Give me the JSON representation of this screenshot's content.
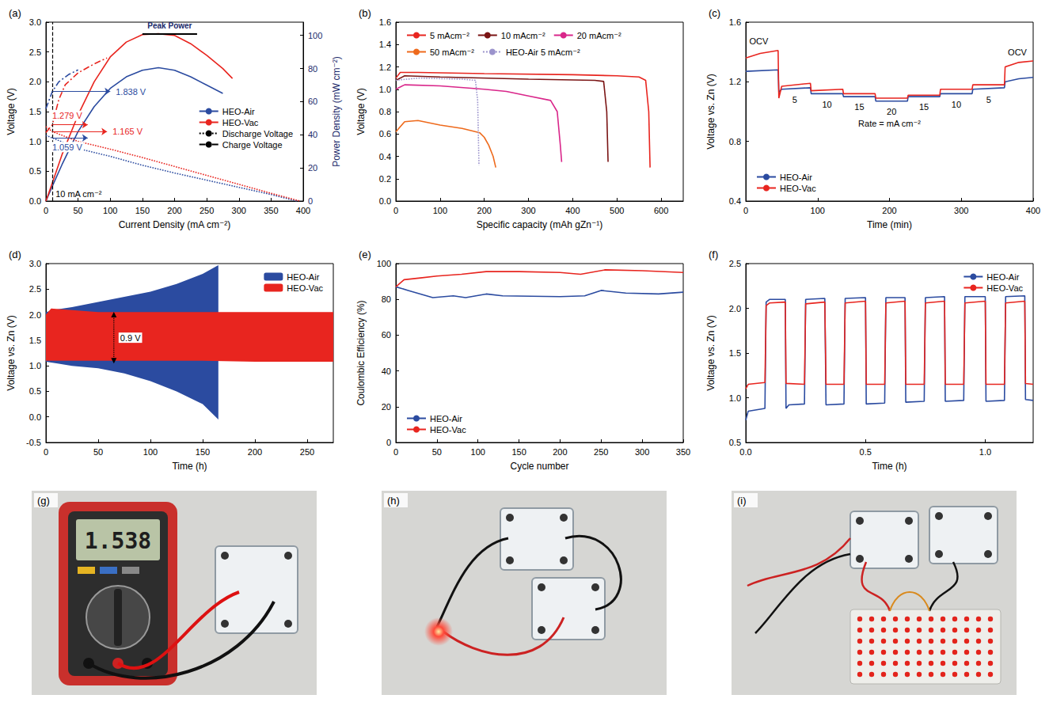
{
  "chart_data": [
    {
      "panel": "(a)",
      "type": "line",
      "x_label": "Current Density (mA cm⁻²)",
      "y_label": "Voltage (V)",
      "y2_label": "Power Density (mW cm⁻²)",
      "xlim": [
        0,
        400
      ],
      "xticks": [
        0,
        50,
        100,
        150,
        200,
        250,
        300,
        350,
        400
      ],
      "ylim": [
        0,
        3
      ],
      "yticks": [
        {
          "value": 0,
          "label": "0.0"
        },
        0.5,
        {
          "value": 1,
          "label": "1.0"
        },
        1.5,
        {
          "value": 2,
          "label": "2.0"
        },
        2.5,
        {
          "value": 3,
          "label": "3.0"
        }
      ],
      "y2lim": [
        0,
        108
      ],
      "y2ticks": [
        0,
        20,
        40,
        60,
        80,
        100
      ],
      "grid": false,
      "legend": "right",
      "series": [
        {
          "name": "HEO-Air",
          "color": "#2b4ba0",
          "line_style": "solid",
          "axis": "y2",
          "x": [
            0,
            10,
            25,
            50,
            75,
            100,
            125,
            150,
            175,
            200,
            225,
            250,
            275
          ],
          "values": [
            0,
            9,
            22,
            42,
            57,
            68,
            75,
            79,
            80.5,
            79,
            75,
            70,
            65
          ]
        },
        {
          "name": "HEO-Vac",
          "color": "#e8251f",
          "line_style": "solid",
          "axis": "y2",
          "x": [
            0,
            10,
            25,
            50,
            75,
            100,
            125,
            150,
            175,
            200,
            225,
            250,
            275,
            290
          ],
          "values": [
            0,
            11,
            28,
            52,
            72,
            87,
            96,
            100.5,
            101,
            100,
            95,
            88,
            80,
            74
          ]
        },
        {
          "name": "HEO-Air",
          "color": "#2b4ba0",
          "line_style": "dotted",
          "x": [
            0,
            10,
            50,
            100,
            150,
            200,
            250,
            300,
            350,
            390
          ],
          "values": [
            1.1,
            1.059,
            0.88,
            0.75,
            0.6,
            0.47,
            0.35,
            0.23,
            0.11,
            0
          ]
        },
        {
          "name": "HEO-Vac",
          "color": "#e8251f",
          "line_style": "dotted",
          "x": [
            0,
            10,
            50,
            100,
            150,
            200,
            250,
            300,
            350,
            395
          ],
          "values": [
            1.25,
            1.165,
            1.0,
            0.87,
            0.73,
            0.58,
            0.43,
            0.28,
            0.13,
            0
          ]
        },
        {
          "name": "HEO-Air",
          "color": "#2b4ba0",
          "line_style": "dashdot",
          "x": [
            0,
            10,
            20,
            35,
            50
          ],
          "values": [
            1.55,
            1.838,
            2.0,
            2.12,
            2.2
          ]
        },
        {
          "name": "HEO-Vac",
          "color": "#e8251f",
          "line_style": "dashdot",
          "x": [
            0,
            10,
            20,
            30,
            50,
            75,
            95
          ],
          "values": [
            1.15,
            1.279,
            1.7,
            1.95,
            2.15,
            2.3,
            2.4
          ]
        }
      ],
      "legend_items": [
        {
          "name": "Discharge Voltage",
          "line_style": "dotted",
          "color": "#000000"
        },
        {
          "name": "Charge Voltage",
          "line_style": "dashdot",
          "color": "#000000"
        }
      ],
      "peak": {
        "text": "Peak Power",
        "x_start": 150,
        "x_end": 235,
        "value": 101
      },
      "arrows": [
        {
          "text": "1.838 V",
          "value": 1.838,
          "x_start": 10,
          "x_end": 100,
          "color": "#2b4ba0"
        },
        {
          "text": "1.279 V",
          "value": 1.279,
          "x_start": 10,
          "x_end": 65,
          "color": "#e8251f"
        },
        {
          "text": "1.165 V",
          "value": 1.165,
          "x_start": 10,
          "x_end": 95,
          "color": "#e8251f"
        },
        {
          "text": "1.059 V",
          "value": 1.059,
          "x_start": 10,
          "x_end": 65,
          "color": "#2b4ba0"
        }
      ],
      "current_marker": {
        "value": 10,
        "text": "10 mA cm⁻²"
      }
    },
    {
      "panel": "(b)",
      "type": "line",
      "x_label": "Specific capacity (mAh gZn⁻¹)",
      "y_label": "Voltage (V)",
      "xlim": [
        0,
        650
      ],
      "xticks": [
        0,
        100,
        200,
        300,
        400,
        500,
        600
      ],
      "ylim": [
        0,
        1.6
      ],
      "yticks": [
        {
          "value": 0,
          "label": "0.0"
        },
        0.2,
        0.4,
        0.6,
        0.8,
        {
          "value": 1,
          "label": "1.0"
        },
        1.2,
        1.4,
        1.6
      ],
      "grid": false,
      "legend": "top-left",
      "series": [
        {
          "name": "5 mAcm⁻²",
          "color": "#e8251f",
          "line_style": "solid",
          "x": [
            0,
            10,
            50,
            200,
            400,
            500,
            550,
            565,
            572,
            575
          ],
          "values": [
            1.1,
            1.15,
            1.15,
            1.14,
            1.13,
            1.12,
            1.11,
            1.08,
            0.8,
            0.3
          ]
        },
        {
          "name": "10 mAcm⁻²",
          "color": "#7a1414",
          "line_style": "solid",
          "x": [
            0,
            20,
            100,
            300,
            450,
            470,
            477,
            480
          ],
          "values": [
            1.08,
            1.12,
            1.11,
            1.09,
            1.08,
            1.07,
            0.8,
            0.35
          ]
        },
        {
          "name": "20 mAcm⁻²",
          "color": "#d9268a",
          "line_style": "solid",
          "x": [
            0,
            20,
            100,
            200,
            250,
            300,
            350,
            365,
            372,
            375
          ],
          "values": [
            1.0,
            1.04,
            1.03,
            1.0,
            0.98,
            0.94,
            0.9,
            0.8,
            0.5,
            0.35
          ]
        },
        {
          "name": "50 mAcm⁻²",
          "color": "#ee6a1c",
          "line_style": "solid",
          "x": [
            0,
            20,
            50,
            100,
            150,
            190,
            200,
            210,
            220,
            226
          ],
          "values": [
            0.62,
            0.71,
            0.72,
            0.68,
            0.65,
            0.61,
            0.57,
            0.5,
            0.4,
            0.3
          ]
        },
        {
          "name": "HEO-Air 5 mAcm⁻²",
          "color": "#9b93cc",
          "line_style": "dotted",
          "x": [
            0,
            50,
            150,
            180,
            185,
            188
          ],
          "values": [
            1.08,
            1.1,
            1.09,
            1.08,
            0.9,
            0.32
          ]
        }
      ]
    },
    {
      "panel": "(c)",
      "type": "line",
      "x_label": "Time (min)",
      "y_label": "Voltage vs. Zn (V)",
      "xlim": [
        0,
        400
      ],
      "xticks": [
        0,
        100,
        200,
        300,
        400
      ],
      "ylim": [
        0.4,
        1.6
      ],
      "yticks": [
        0.4,
        0.8,
        1.2,
        1.6
      ],
      "grid": false,
      "legend": "bottom-left",
      "series": [
        {
          "name": "HEO-Air",
          "color": "#2b4ba0",
          "line_style": "solid",
          "x": [
            0,
            45,
            46,
            50,
            90,
            91,
            135,
            136,
            180,
            181,
            225,
            226,
            270,
            271,
            315,
            316,
            360,
            361,
            380,
            400
          ],
          "values": [
            1.27,
            1.28,
            1.13,
            1.15,
            1.16,
            1.12,
            1.12,
            1.1,
            1.1,
            1.07,
            1.07,
            1.1,
            1.1,
            1.12,
            1.12,
            1.15,
            1.16,
            1.2,
            1.22,
            1.23
          ]
        },
        {
          "name": "HEO-Vac",
          "color": "#e8251f",
          "line_style": "solid",
          "x": [
            0,
            20,
            45,
            46,
            50,
            90,
            91,
            135,
            136,
            180,
            181,
            225,
            226,
            270,
            271,
            315,
            316,
            360,
            361,
            380,
            400
          ],
          "values": [
            1.36,
            1.39,
            1.41,
            1.09,
            1.17,
            1.19,
            1.14,
            1.15,
            1.12,
            1.12,
            1.09,
            1.09,
            1.11,
            1.11,
            1.15,
            1.15,
            1.18,
            1.18,
            1.3,
            1.33,
            1.34
          ]
        }
      ],
      "annotations": [
        {
          "text": "OCV",
          "x": 18,
          "y": 1.47
        },
        {
          "text": "OCV",
          "x": 378,
          "y": 1.4
        },
        {
          "text": "5",
          "x": 68,
          "y": 1.08
        },
        {
          "text": "10",
          "x": 113,
          "y": 1.05
        },
        {
          "text": "15",
          "x": 158,
          "y": 1.03
        },
        {
          "text": "20",
          "x": 203,
          "y": 1.0
        },
        {
          "text": "15",
          "x": 248,
          "y": 1.03
        },
        {
          "text": "10",
          "x": 293,
          "y": 1.05
        },
        {
          "text": "5",
          "x": 338,
          "y": 1.08
        },
        {
          "text": "Rate = mA cm⁻²",
          "x": 200,
          "y": 0.92
        }
      ]
    },
    {
      "panel": "(d)",
      "type": "band",
      "x_label": "Time (h)",
      "y_label": "Voltage vs. Zn (V)",
      "xlim": [
        0,
        275
      ],
      "xticks": [
        0,
        50,
        100,
        150,
        200,
        250
      ],
      "ylim": [
        -0.5,
        3
      ],
      "yticks": [
        -0.5,
        {
          "value": 0,
          "label": "0.0"
        },
        0.5,
        {
          "value": 1,
          "label": "1.0"
        },
        1.5,
        {
          "value": 2,
          "label": "2.0"
        },
        2.5,
        {
          "value": 3,
          "label": "3.0"
        }
      ],
      "grid": false,
      "legend": "top-right",
      "series": [
        {
          "name": "HEO-Air",
          "color": "#2b4ba0",
          "x": [
            0,
            10,
            25,
            50,
            75,
            100,
            125,
            150,
            165
          ],
          "upper": [
            2.05,
            2.1,
            2.15,
            2.25,
            2.35,
            2.45,
            2.6,
            2.8,
            2.97
          ],
          "lower": [
            1.08,
            1.05,
            1.0,
            0.95,
            0.85,
            0.7,
            0.5,
            0.25,
            -0.05
          ]
        },
        {
          "name": "HEO-Vac",
          "color": "#e8251f",
          "x": [
            0,
            5,
            50,
            100,
            150,
            200,
            250,
            275
          ],
          "upper": [
            2.0,
            2.12,
            2.05,
            2.05,
            2.05,
            2.05,
            2.05,
            2.05
          ],
          "lower": [
            1.1,
            1.1,
            1.1,
            1.1,
            1.1,
            1.08,
            1.08,
            1.08
          ]
        }
      ],
      "span_arrow": {
        "text": "0.9 V",
        "x": 65,
        "from": 1.1,
        "to": 2.0
      }
    },
    {
      "panel": "(e)",
      "type": "line",
      "x_label": "Cycle number",
      "y_label": "Coulombic Efficiency (%)",
      "xlim": [
        0,
        350
      ],
      "xticks": [
        0,
        50,
        100,
        150,
        200,
        250,
        300,
        350
      ],
      "ylim": [
        0,
        100
      ],
      "yticks": [
        0,
        20,
        40,
        60,
        80,
        100
      ],
      "grid": false,
      "legend": "bottom-left",
      "series": [
        {
          "name": "HEO-Air",
          "color": "#2b4ba0",
          "line_style": "solid",
          "x": [
            0,
            15,
            30,
            45,
            70,
            85,
            110,
            130,
            200,
            230,
            250,
            280,
            320,
            350
          ],
          "values": [
            87,
            85,
            83,
            81,
            82,
            81,
            83,
            82,
            81.5,
            82,
            85,
            83.5,
            83,
            84
          ]
        },
        {
          "name": "HEO-Vac",
          "color": "#e8251f",
          "line_style": "solid",
          "x": [
            0,
            10,
            30,
            50,
            80,
            110,
            150,
            200,
            225,
            255,
            300,
            350
          ],
          "values": [
            87,
            91,
            92,
            93,
            94,
            95.5,
            95.5,
            95,
            94,
            96.5,
            96,
            95
          ]
        }
      ]
    },
    {
      "panel": "(f)",
      "type": "line",
      "x_label": "Time (h)",
      "y_label": "Voltage vs. Zn (V)",
      "xlim": [
        0,
        1.2
      ],
      "xticks": [
        {
          "value": 0,
          "label": "0.0"
        },
        0.5,
        {
          "value": 1,
          "label": "1.0"
        }
      ],
      "ylim": [
        0.5,
        2.5
      ],
      "yticks": [
        0.5,
        {
          "value": 1,
          "label": "1.0"
        },
        1.5,
        {
          "value": 2,
          "label": "2.0"
        },
        2.5
      ],
      "grid": false,
      "legend": "top-right",
      "series": [
        {
          "name": "HEO-Air",
          "color": "#2b4ba0",
          "line_style": "solid",
          "x": [
            0,
            0.01,
            0.08,
            0.085,
            0.1,
            0.165,
            0.168,
            0.18,
            0.245,
            0.25,
            0.33,
            0.335,
            0.41,
            0.415,
            0.5,
            0.503,
            0.58,
            0.585,
            0.665,
            0.668,
            0.745,
            0.75,
            0.83,
            0.833,
            0.91,
            0.915,
            1.0,
            1.003,
            1.08,
            1.085,
            1.165,
            1.168,
            1.2
          ],
          "values": [
            0.75,
            0.85,
            0.88,
            2.07,
            2.1,
            2.1,
            0.88,
            0.92,
            0.93,
            2.1,
            2.11,
            0.92,
            0.93,
            2.11,
            2.12,
            0.93,
            0.94,
            2.12,
            2.12,
            0.95,
            0.96,
            2.12,
            2.13,
            0.96,
            0.97,
            2.13,
            2.13,
            0.96,
            0.97,
            2.13,
            2.14,
            0.98,
            0.97
          ]
        },
        {
          "name": "HEO-Vac",
          "color": "#e8251f",
          "line_style": "solid",
          "x": [
            0,
            0.01,
            0.08,
            0.085,
            0.1,
            0.165,
            0.168,
            0.245,
            0.25,
            0.33,
            0.335,
            0.41,
            0.415,
            0.5,
            0.503,
            0.58,
            0.585,
            0.665,
            0.668,
            0.745,
            0.75,
            0.83,
            0.833,
            0.91,
            0.915,
            1.0,
            1.003,
            1.08,
            1.085,
            1.165,
            1.168,
            1.2
          ],
          "values": [
            1.1,
            1.15,
            1.17,
            2.03,
            2.06,
            2.07,
            1.16,
            1.15,
            2.05,
            2.07,
            1.15,
            1.15,
            2.06,
            2.08,
            1.15,
            1.15,
            2.06,
            2.08,
            1.15,
            1.15,
            2.06,
            2.08,
            1.15,
            1.15,
            2.06,
            2.08,
            1.15,
            1.15,
            2.06,
            2.08,
            1.16,
            1.15
          ]
        }
      ]
    }
  ],
  "photos": [
    {
      "panel": "(g)",
      "meter_reading": "1.538"
    },
    {
      "panel": "(h)"
    },
    {
      "panel": "(i)"
    }
  ]
}
